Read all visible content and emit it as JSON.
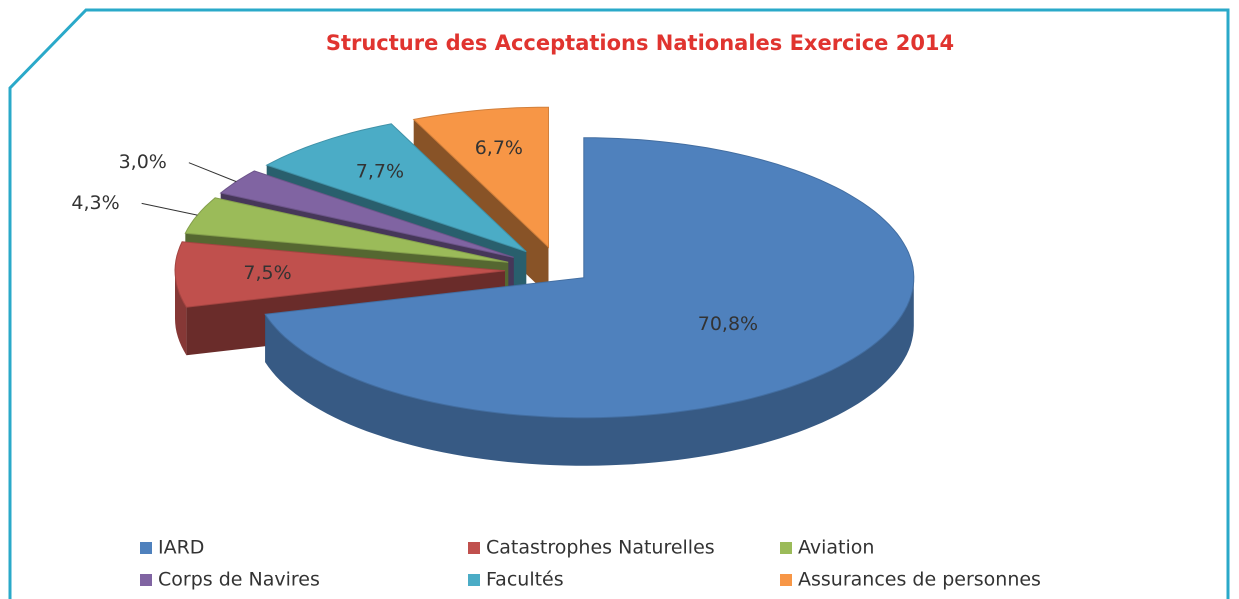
{
  "chart_data": {
    "type": "pie",
    "title": "Structure des Acceptations Nationales Exercice 2014",
    "categories": [
      "IARD",
      "Catastrophes Naturelles",
      "Aviation",
      "Corps de Navires",
      "Facultés",
      "Assurances de personnes"
    ],
    "values": [
      70.8,
      7.5,
      4.3,
      3.0,
      7.7,
      6.7
    ],
    "value_labels": [
      "70,8%",
      "7,5%",
      "4,3%",
      "3,0%",
      "7,7%",
      "6,7%"
    ],
    "colors": [
      "#4f81bd",
      "#c0504d",
      "#9bbb59",
      "#8064a2",
      "#4bacc6",
      "#f79646"
    ],
    "legend": "bottom"
  }
}
